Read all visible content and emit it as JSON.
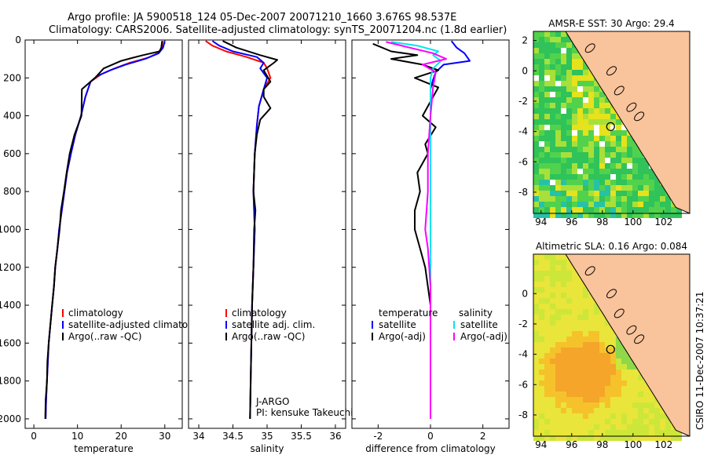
{
  "header": {
    "line1": "Argo profile: JA 5900518_124 05-Dec-2007 20071210_1660 3.676S 98.537E",
    "line2": "Climatology: CARS2006. Satellite-adjusted climatology: synTS_20071204.nc (1.8d earlier)"
  },
  "footer": {
    "credit": "CSIRO 11-Dec-2007 10:37:21"
  },
  "colors": {
    "climatology": "#ff0000",
    "satellite": "#0000ff",
    "argo": "#000000",
    "argo_adj": "#ff00ff",
    "salinity_sat": "#00e5ee",
    "land": "#f9c39b"
  },
  "chart_data": [
    {
      "type": "line",
      "panel": "temperature",
      "xlabel": "temperature",
      "xlim": [
        -2,
        34
      ],
      "ylim": [
        2050,
        0
      ],
      "xticks": [
        0,
        10,
        20,
        30
      ],
      "yticks": [
        0,
        200,
        400,
        600,
        800,
        1000,
        1200,
        1400,
        1600,
        1800,
        2000
      ],
      "legend": [
        "climatology",
        "satellite-adjusted climatology",
        "Argo(..raw -QC)"
      ],
      "series": [
        {
          "name": "climatology",
          "color": "#ff0000",
          "points": [
            [
              29.5,
              5
            ],
            [
              29.3,
              40
            ],
            [
              28.4,
              70
            ],
            [
              26,
              95
            ],
            [
              22,
              120
            ],
            [
              18.5,
              150
            ],
            [
              15.5,
              180
            ],
            [
              13,
              220
            ],
            [
              11.8,
              300
            ],
            [
              10.8,
              400
            ],
            [
              9.5,
              500
            ],
            [
              8.5,
              600
            ],
            [
              7.6,
              700
            ],
            [
              7,
              800
            ],
            [
              6.4,
              900
            ],
            [
              5.8,
              1000
            ],
            [
              5.4,
              1100
            ],
            [
              4.9,
              1200
            ],
            [
              4.6,
              1300
            ],
            [
              4.2,
              1400
            ],
            [
              3.8,
              1500
            ],
            [
              3.4,
              1600
            ],
            [
              3.2,
              1700
            ],
            [
              3,
              1800
            ],
            [
              2.8,
              1900
            ],
            [
              2.7,
              2000
            ]
          ]
        },
        {
          "name": "satellite-adjusted climatology",
          "color": "#0000ff",
          "points": [
            [
              30,
              5
            ],
            [
              29.6,
              40
            ],
            [
              28.6,
              70
            ],
            [
              25.5,
              100
            ],
            [
              21,
              130
            ],
            [
              17.5,
              160
            ],
            [
              14.5,
              190
            ],
            [
              13,
              220
            ],
            [
              11.8,
              300
            ],
            [
              10.8,
              400
            ],
            [
              9.5,
              500
            ],
            [
              8.5,
              600
            ],
            [
              7.6,
              700
            ],
            [
              7,
              800
            ],
            [
              6.4,
              900
            ],
            [
              5.8,
              1000
            ],
            [
              5.4,
              1100
            ],
            [
              4.9,
              1200
            ],
            [
              4.6,
              1300
            ],
            [
              4.2,
              1400
            ],
            [
              3.8,
              1500
            ],
            [
              3.4,
              1600
            ],
            [
              3.2,
              1700
            ],
            [
              3,
              1800
            ],
            [
              2.8,
              1900
            ],
            [
              2.7,
              2000
            ]
          ]
        },
        {
          "name": "Argo(..raw -QC)",
          "color": "#000000",
          "points": [
            [
              29.4,
              5
            ],
            [
              29.2,
              40
            ],
            [
              28.8,
              60
            ],
            [
              25,
              80
            ],
            [
              22.5,
              95
            ],
            [
              20,
              110
            ],
            [
              16,
              150
            ],
            [
              14,
              200
            ],
            [
              11,
              260
            ],
            [
              10.9,
              400
            ],
            [
              9.3,
              500
            ],
            [
              8.2,
              600
            ],
            [
              7.5,
              700
            ],
            [
              6.9,
              800
            ],
            [
              6.2,
              900
            ],
            [
              5.9,
              1000
            ],
            [
              5.4,
              1100
            ],
            [
              4.9,
              1200
            ],
            [
              4.6,
              1300
            ],
            [
              4.2,
              1400
            ],
            [
              3.8,
              1500
            ],
            [
              3.4,
              1600
            ],
            [
              3.1,
              1700
            ],
            [
              3,
              1800
            ],
            [
              2.7,
              1900
            ],
            [
              2.6,
              2000
            ]
          ]
        }
      ]
    },
    {
      "type": "line",
      "panel": "salinity",
      "xlabel": "salinity",
      "xlim": [
        33.85,
        36.15
      ],
      "ylim": [
        2050,
        0
      ],
      "xticks": [
        34,
        34.5,
        35,
        35.5,
        36
      ],
      "legend": [
        "climatology",
        "satellite adj. clim.",
        "Argo(..raw -QC)"
      ],
      "annotation": [
        "J-ARGO",
        "PI: kensuke Takeuchi"
      ],
      "series": [
        {
          "name": "climatology",
          "color": "#ff0000",
          "points": [
            [
              34.1,
              5
            ],
            [
              34.2,
              30
            ],
            [
              34.4,
              60
            ],
            [
              34.7,
              90
            ],
            [
              34.95,
              120
            ],
            [
              35,
              150
            ],
            [
              35.05,
              200
            ],
            [
              34.95,
              260
            ],
            [
              34.88,
              350
            ],
            [
              34.85,
              450
            ],
            [
              34.82,
              600
            ],
            [
              34.8,
              800
            ],
            [
              34.82,
              1000
            ],
            [
              34.8,
              1200
            ],
            [
              34.78,
              1400
            ],
            [
              34.77,
              1600
            ],
            [
              34.76,
              1800
            ],
            [
              34.75,
              2000
            ]
          ]
        },
        {
          "name": "satellite adj. clim.",
          "color": "#0000ff",
          "points": [
            [
              34.2,
              5
            ],
            [
              34.3,
              30
            ],
            [
              34.5,
              60
            ],
            [
              34.85,
              90
            ],
            [
              34.95,
              120
            ],
            [
              34.9,
              150
            ],
            [
              35,
              200
            ],
            [
              34.95,
              260
            ],
            [
              34.88,
              350
            ],
            [
              34.85,
              450
            ],
            [
              34.82,
              600
            ],
            [
              34.8,
              800
            ],
            [
              34.82,
              1000
            ],
            [
              34.8,
              1200
            ],
            [
              34.78,
              1400
            ],
            [
              34.77,
              1600
            ],
            [
              34.76,
              1800
            ],
            [
              34.75,
              2000
            ]
          ]
        },
        {
          "name": "Argo(..raw -QC)",
          "color": "#000000",
          "points": [
            [
              34.35,
              5
            ],
            [
              34.55,
              40
            ],
            [
              34.9,
              80
            ],
            [
              35.15,
              105
            ],
            [
              35.1,
              120
            ],
            [
              34.95,
              160
            ],
            [
              35.05,
              220
            ],
            [
              34.95,
              260
            ],
            [
              34.95,
              300
            ],
            [
              35.05,
              360
            ],
            [
              34.9,
              420
            ],
            [
              34.85,
              500
            ],
            [
              34.82,
              600
            ],
            [
              34.8,
              800
            ],
            [
              34.83,
              900
            ],
            [
              34.81,
              1000
            ],
            [
              34.8,
              1200
            ],
            [
              34.78,
              1400
            ],
            [
              34.77,
              1600
            ],
            [
              34.76,
              1800
            ],
            [
              34.75,
              2000
            ]
          ]
        }
      ]
    },
    {
      "type": "line",
      "panel": "difference",
      "xlabel": "difference from climatology",
      "xlim": [
        -3,
        3
      ],
      "ylim": [
        2050,
        0
      ],
      "xticks": [
        -2,
        0,
        2
      ],
      "legend": {
        "temperature": [
          "satellite",
          "Argo(-adj)"
        ],
        "salinity": [
          "satellite",
          "Argo(-adj)"
        ]
      },
      "legend_titles": [
        "temperature",
        "salinity"
      ],
      "series": [
        {
          "name": "temperature satellite",
          "color": "#0000ff",
          "points": [
            [
              0.8,
              5
            ],
            [
              1.0,
              40
            ],
            [
              1.3,
              70
            ],
            [
              1.5,
              110
            ],
            [
              0.5,
              130
            ],
            [
              0.2,
              170
            ],
            [
              0.1,
              210
            ],
            [
              0,
              260
            ],
            [
              0,
              400
            ],
            [
              0,
              600
            ],
            [
              0,
              800
            ],
            [
              0,
              1000
            ],
            [
              0,
              1200
            ],
            [
              0,
              1400
            ],
            [
              0,
              1600
            ],
            [
              0,
              1800
            ],
            [
              0,
              2000
            ]
          ]
        },
        {
          "name": "temperature Argo(-adj)",
          "color": "#000000",
          "points": [
            [
              -2.2,
              20
            ],
            [
              -1.5,
              60
            ],
            [
              -0.5,
              80
            ],
            [
              -1.5,
              100
            ],
            [
              -0.3,
              130
            ],
            [
              0.3,
              160
            ],
            [
              -0.6,
              200
            ],
            [
              0.3,
              250
            ],
            [
              0.1,
              300
            ],
            [
              -0.3,
              400
            ],
            [
              0.2,
              460
            ],
            [
              -0.2,
              550
            ],
            [
              -0.1,
              600
            ],
            [
              -0.5,
              700
            ],
            [
              -0.4,
              800
            ],
            [
              -0.6,
              900
            ],
            [
              -0.6,
              1000
            ],
            [
              -0.4,
              1100
            ],
            [
              -0.2,
              1200
            ],
            [
              0,
              1400
            ],
            [
              0,
              2000
            ]
          ]
        },
        {
          "name": "salinity satellite",
          "color": "#00e5ee",
          "points": [
            [
              -1.5,
              10
            ],
            [
              -0.5,
              30
            ],
            [
              0.3,
              60
            ],
            [
              0.1,
              80
            ],
            [
              0.4,
              110
            ],
            [
              0.1,
              150
            ],
            [
              0,
              200
            ],
            [
              0,
              300
            ],
            [
              0,
              600
            ],
            [
              0,
              1000
            ],
            [
              0,
              1500
            ],
            [
              0,
              2000
            ]
          ]
        },
        {
          "name": "salinity Argo(-adj)",
          "color": "#ff00ff",
          "points": [
            [
              -1.7,
              10
            ],
            [
              -0.8,
              40
            ],
            [
              0.1,
              70
            ],
            [
              0.6,
              100
            ],
            [
              -0.3,
              130
            ],
            [
              0.2,
              170
            ],
            [
              0.1,
              250
            ],
            [
              0,
              400
            ],
            [
              -0.1,
              600
            ],
            [
              -0.1,
              800
            ],
            [
              -0.2,
              1000
            ],
            [
              -0.1,
              1100
            ],
            [
              0,
              1300
            ],
            [
              0,
              2000
            ]
          ]
        }
      ]
    },
    {
      "type": "heatmap",
      "panel": "sst_map",
      "title": "AMSR-E SST: 30 Argo: 29.4",
      "xticks": [
        94,
        96,
        98,
        100,
        102
      ],
      "yticks": [
        2,
        0,
        -2,
        -4,
        -6,
        -8
      ],
      "xlim": [
        93.5,
        103.7
      ],
      "ylim": [
        -9.4,
        2.6
      ],
      "float_position": [
        98.537,
        -3.676
      ]
    },
    {
      "type": "heatmap",
      "panel": "sla_map",
      "title": "Altimetric SLA: 0.16 Argo: 0.084",
      "xticks": [
        94,
        96,
        98,
        100,
        102
      ],
      "yticks": [
        0,
        -2,
        -4,
        -6,
        -8
      ],
      "xlim": [
        93.5,
        103.7
      ],
      "ylim": [
        -9.4,
        2.6
      ],
      "float_position": [
        98.537,
        -3.676
      ]
    }
  ]
}
